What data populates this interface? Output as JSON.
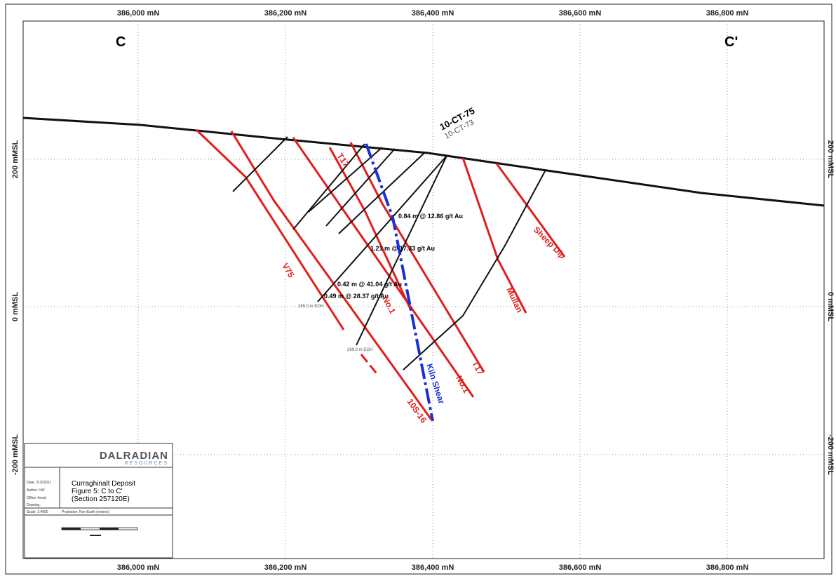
{
  "axes": {
    "top": [
      "386,000 mN",
      "386,200 mN",
      "386,400 mN",
      "386,600 mN",
      "386,800 mN"
    ],
    "bottom": [
      "386,000 mN",
      "386,200 mN",
      "386,400 mN",
      "386,600 mN",
      "386,800 mN"
    ],
    "left": [
      "200 mMSL",
      "0 mMSL",
      "-200 mMSL"
    ],
    "right": [
      "200 mMSL",
      "0 mMSL",
      "-200 mMSL"
    ]
  },
  "section": {
    "start": "C",
    "end": "C'"
  },
  "drillholes": [
    "10-CT-75",
    "10-CT-73"
  ],
  "intercepts": [
    "0.84 m @ 12.86 g/t Au",
    "1.21 m @ 17.33 g/t Au",
    "0.42 m @ 41.04 g/t Au",
    "0.49 m @ 28.37 g/t Au"
  ],
  "eoh": [
    "265.0 m EOH",
    "269.0 m EOH"
  ],
  "structures": [
    "T17",
    "V75",
    "No.1",
    "T17",
    "No.1",
    "10S-16",
    "Kiln Shear",
    "Mullan",
    "Sheep Dip"
  ],
  "title_block": {
    "company": "DALRADIAN",
    "company_sub": "RESOURCES",
    "lines": [
      "Curraghinalt Deposit",
      "Figure 5: C to C'",
      "(Section 257120E)"
    ],
    "meta": [
      "Date: 21/2/2011",
      "Author: VW",
      "Office: Avoid",
      "Drawing:",
      "Scale: 1:4000",
      "Projection: Non-Earth (metres)"
    ]
  }
}
